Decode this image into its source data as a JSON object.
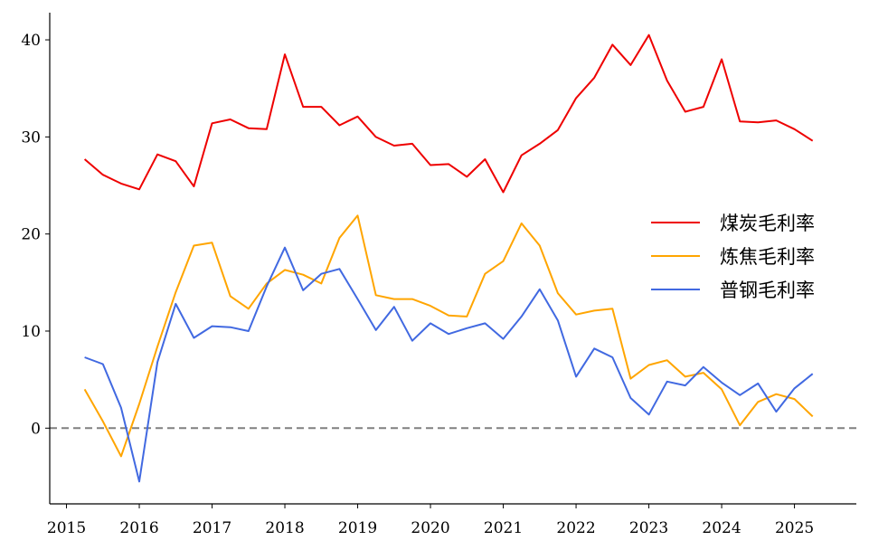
{
  "chart_data": {
    "type": "line",
    "title": "",
    "xlabel": "",
    "ylabel": "",
    "xlim": [
      2014.77,
      2025.85
    ],
    "ylim": [
      -7.8,
      42.8
    ],
    "x_ticks": [
      2015,
      2016,
      2017,
      2018,
      2019,
      2020,
      2021,
      2022,
      2023,
      2024,
      2025
    ],
    "y_ticks": [
      0,
      10,
      20,
      30,
      40
    ],
    "grid": false,
    "legend_position": "center-right",
    "reference_line": {
      "y": 0,
      "style": "dashed",
      "color": "#808080"
    },
    "x": [
      2015.25,
      2015.5,
      2015.75,
      2016.0,
      2016.25,
      2016.5,
      2016.75,
      2017.0,
      2017.25,
      2017.5,
      2017.75,
      2018.0,
      2018.25,
      2018.5,
      2018.75,
      2019.0,
      2019.25,
      2019.5,
      2019.75,
      2020.0,
      2020.25,
      2020.5,
      2020.75,
      2021.0,
      2021.25,
      2021.5,
      2021.75,
      2022.0,
      2022.25,
      2022.5,
      2022.75,
      2023.0,
      2023.25,
      2023.5,
      2023.75,
      2024.0,
      2024.25,
      2024.5,
      2024.75,
      2025.0,
      2025.25
    ],
    "series": [
      {
        "name": "煤炭毛利率",
        "color": "#ee0000",
        "values": [
          27.7,
          26.1,
          25.2,
          24.6,
          28.2,
          27.5,
          24.9,
          31.4,
          31.8,
          30.9,
          30.8,
          38.5,
          33.1,
          33.1,
          31.2,
          32.1,
          30.0,
          29.1,
          29.3,
          27.1,
          27.2,
          25.9,
          27.7,
          24.3,
          28.1,
          29.3,
          30.7,
          34.0,
          36.1,
          39.5,
          37.4,
          40.5,
          35.8,
          32.6,
          33.1,
          38.0,
          31.6,
          31.5,
          31.7,
          30.8,
          29.6
        ]
      },
      {
        "name": "炼焦毛利率",
        "color": "#ffa500",
        "values": [
          4.0,
          0.7,
          -2.9,
          2.5,
          8.4,
          14.0,
          18.8,
          19.1,
          13.6,
          12.3,
          14.9,
          16.3,
          15.8,
          14.9,
          19.6,
          21.9,
          13.7,
          13.3,
          13.3,
          12.6,
          11.6,
          11.5,
          15.9,
          17.2,
          21.1,
          18.8,
          13.9,
          11.7,
          12.1,
          12.3,
          5.1,
          6.5,
          7.0,
          5.3,
          5.7,
          4.0,
          0.3,
          2.7,
          3.5,
          3.0,
          1.2
        ]
      },
      {
        "name": "普钢毛利率",
        "color": "#4169e1",
        "values": [
          7.3,
          6.6,
          2.1,
          -5.5,
          6.8,
          12.8,
          9.3,
          10.5,
          10.4,
          10.0,
          14.6,
          18.6,
          14.2,
          15.9,
          16.4,
          13.3,
          10.1,
          12.5,
          9.0,
          10.8,
          9.7,
          10.3,
          10.8,
          9.2,
          11.5,
          14.3,
          11.1,
          5.3,
          8.2,
          7.3,
          3.1,
          1.4,
          4.8,
          4.4,
          6.3,
          4.7,
          3.4,
          4.6,
          1.7,
          4.1,
          5.6
        ]
      }
    ]
  }
}
